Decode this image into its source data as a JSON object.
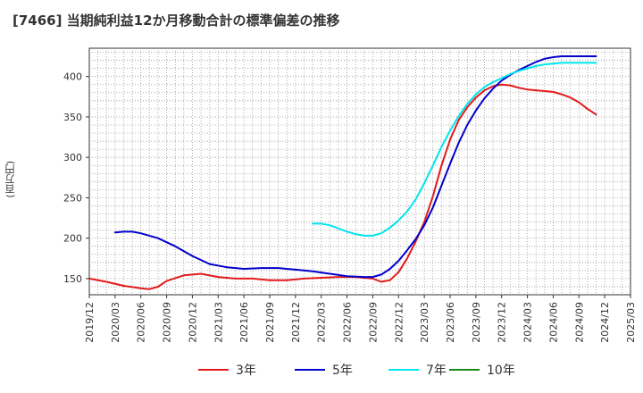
{
  "chart_data": {
    "type": "line",
    "title": "[7466]  当期純利益12か月移動合計の標準偏差の推移",
    "ylabel": "(百万円)",
    "ylim": [
      130,
      435
    ],
    "yticks": [
      150,
      200,
      250,
      300,
      350,
      400
    ],
    "xlim": [
      "2019-12",
      "2025-03"
    ],
    "xticks": [
      "2019/12",
      "2020/03",
      "2020/06",
      "2020/09",
      "2020/12",
      "2021/03",
      "2021/06",
      "2021/09",
      "2021/12",
      "2022/03",
      "2022/06",
      "2022/09",
      "2022/12",
      "2023/03",
      "2023/06",
      "2023/09",
      "2023/12",
      "2024/03",
      "2024/06",
      "2024/09",
      "2024/12",
      "2025/03"
    ],
    "grid": true,
    "legend_position": "bottom",
    "series": [
      {
        "name": "3年",
        "color": "#e31a1c",
        "points": [
          [
            "2019-12",
            150
          ],
          [
            "2020-02",
            146
          ],
          [
            "2020-04",
            141
          ],
          [
            "2020-06",
            138
          ],
          [
            "2020-07",
            137
          ],
          [
            "2020-08",
            140
          ],
          [
            "2020-09",
            147
          ],
          [
            "2020-11",
            154
          ],
          [
            "2021-01",
            156
          ],
          [
            "2021-03",
            152
          ],
          [
            "2021-05",
            150
          ],
          [
            "2021-07",
            150
          ],
          [
            "2021-09",
            148
          ],
          [
            "2021-11",
            148
          ],
          [
            "2022-01",
            150
          ],
          [
            "2022-03",
            151
          ],
          [
            "2022-05",
            152
          ],
          [
            "2022-07",
            152
          ],
          [
            "2022-09",
            150
          ],
          [
            "2022-10",
            146
          ],
          [
            "2022-11",
            148
          ],
          [
            "2022-12",
            158
          ],
          [
            "2023-01",
            175
          ],
          [
            "2023-02",
            196
          ],
          [
            "2023-03",
            220
          ],
          [
            "2023-04",
            252
          ],
          [
            "2023-05",
            290
          ],
          [
            "2023-06",
            322
          ],
          [
            "2023-07",
            346
          ],
          [
            "2023-08",
            362
          ],
          [
            "2023-09",
            374
          ],
          [
            "2023-10",
            383
          ],
          [
            "2023-11",
            388
          ],
          [
            "2023-12",
            390
          ],
          [
            "2024-01",
            389
          ],
          [
            "2024-02",
            386
          ],
          [
            "2024-03",
            384
          ],
          [
            "2024-04",
            383
          ],
          [
            "2024-05",
            382
          ],
          [
            "2024-06",
            381
          ],
          [
            "2024-07",
            378
          ],
          [
            "2024-08",
            374
          ],
          [
            "2024-09",
            368
          ],
          [
            "2024-10",
            360
          ],
          [
            "2024-11",
            353
          ]
        ]
      },
      {
        "name": "5年",
        "color": "#0000cc",
        "points": [
          [
            "2020-03",
            207
          ],
          [
            "2020-04",
            208
          ],
          [
            "2020-05",
            208
          ],
          [
            "2020-06",
            206
          ],
          [
            "2020-08",
            200
          ],
          [
            "2020-10",
            190
          ],
          [
            "2020-12",
            178
          ],
          [
            "2021-02",
            168
          ],
          [
            "2021-04",
            164
          ],
          [
            "2021-06",
            162
          ],
          [
            "2021-08",
            163
          ],
          [
            "2021-10",
            163
          ],
          [
            "2021-12",
            161
          ],
          [
            "2022-02",
            159
          ],
          [
            "2022-04",
            156
          ],
          [
            "2022-06",
            153
          ],
          [
            "2022-08",
            152
          ],
          [
            "2022-09",
            152
          ],
          [
            "2022-10",
            155
          ],
          [
            "2022-11",
            162
          ],
          [
            "2022-12",
            172
          ],
          [
            "2023-01",
            185
          ],
          [
            "2023-02",
            199
          ],
          [
            "2023-03",
            216
          ],
          [
            "2023-04",
            238
          ],
          [
            "2023-05",
            265
          ],
          [
            "2023-06",
            292
          ],
          [
            "2023-07",
            318
          ],
          [
            "2023-08",
            340
          ],
          [
            "2023-09",
            358
          ],
          [
            "2023-10",
            373
          ],
          [
            "2023-11",
            385
          ],
          [
            "2023-12",
            395
          ],
          [
            "2024-01",
            402
          ],
          [
            "2024-02",
            408
          ],
          [
            "2024-03",
            413
          ],
          [
            "2024-04",
            418
          ],
          [
            "2024-05",
            422
          ],
          [
            "2024-06",
            424
          ],
          [
            "2024-07",
            425
          ],
          [
            "2024-08",
            425
          ],
          [
            "2024-09",
            425
          ],
          [
            "2024-10",
            425
          ],
          [
            "2024-11",
            425
          ]
        ]
      },
      {
        "name": "7年",
        "color": "#00e5ee",
        "points": [
          [
            "2022-02",
            218
          ],
          [
            "2022-03",
            218
          ],
          [
            "2022-04",
            216
          ],
          [
            "2022-05",
            212
          ],
          [
            "2022-06",
            208
          ],
          [
            "2022-07",
            205
          ],
          [
            "2022-08",
            203
          ],
          [
            "2022-09",
            203
          ],
          [
            "2022-10",
            206
          ],
          [
            "2022-11",
            213
          ],
          [
            "2022-12",
            222
          ],
          [
            "2023-01",
            233
          ],
          [
            "2023-02",
            248
          ],
          [
            "2023-03",
            268
          ],
          [
            "2023-04",
            290
          ],
          [
            "2023-05",
            313
          ],
          [
            "2023-06",
            333
          ],
          [
            "2023-07",
            351
          ],
          [
            "2023-08",
            366
          ],
          [
            "2023-09",
            378
          ],
          [
            "2023-10",
            387
          ],
          [
            "2023-11",
            393
          ],
          [
            "2023-12",
            398
          ],
          [
            "2024-01",
            403
          ],
          [
            "2024-02",
            407
          ],
          [
            "2024-03",
            410
          ],
          [
            "2024-04",
            413
          ],
          [
            "2024-05",
            415
          ],
          [
            "2024-06",
            416
          ],
          [
            "2024-07",
            417
          ],
          [
            "2024-08",
            417
          ],
          [
            "2024-09",
            417
          ],
          [
            "2024-10",
            417
          ],
          [
            "2024-11",
            417
          ]
        ]
      },
      {
        "name": "10年",
        "color": "#1a8a1a",
        "points": []
      }
    ]
  }
}
